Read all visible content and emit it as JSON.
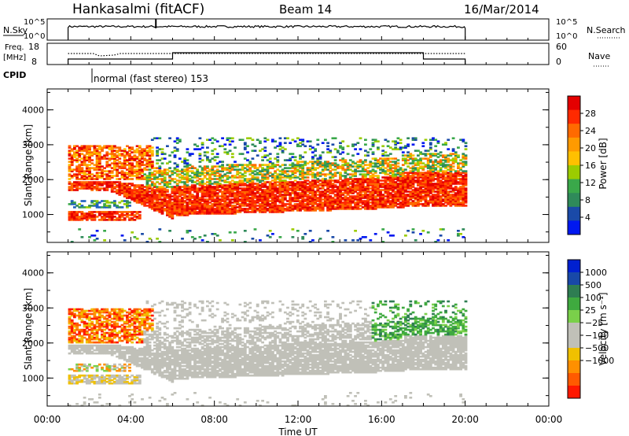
{
  "header": {
    "station": "Hankasalmi (fitACF)",
    "beam": "Beam 14",
    "date": "16/Mar/2014"
  },
  "status_panel": {
    "nsky_label": "N.Sky",
    "nsky_ticks": [
      "10^5",
      "10^0"
    ],
    "nsearch_label": "N.Search",
    "nsearch_ticks": [
      "10^5",
      "10^0"
    ],
    "freq_label": "Freq.",
    "freq_unit": "[MHz]",
    "freq_ticks": [
      "18",
      "8"
    ],
    "nave_label": "Nave",
    "nave_ticks": [
      "60",
      "0"
    ],
    "cpid_label": "CPID",
    "cpid_text": "normal (fast stereo) 153"
  },
  "power_panel": {
    "ylabel": "Slant Range [km]",
    "yticks": [
      "4000",
      "3000",
      "2000",
      "1000"
    ],
    "colorbar_label": "Power [dB]",
    "colorbar_ticks": [
      "28",
      "24",
      "20",
      "16",
      "12",
      "8",
      "4"
    ],
    "colors": [
      "#e40000",
      "#ff2a00",
      "#ff6a00",
      "#ff9a00",
      "#ffc000",
      "#9ccc00",
      "#3aa84a",
      "#2f8a5a",
      "#1a4aa8",
      "#0018f0"
    ]
  },
  "velocity_panel": {
    "ylabel": "Slant Range [km]",
    "yticks": [
      "4000",
      "3000",
      "2000",
      "1000"
    ],
    "colorbar_label": "Velocity [m s⁻¹]",
    "colorbar_ticks": [
      "1000",
      "500",
      "100",
      "25",
      "−25",
      "−100",
      "−500",
      "−1000"
    ],
    "colors": [
      "#0020d0",
      "#1848a8",
      "#2e7d52",
      "#3faa3f",
      "#7ad04a",
      "#c0c0b8",
      "#c0c0b8",
      "#f0c000",
      "#ff9000",
      "#ff5a00",
      "#ff1800"
    ]
  },
  "xaxis": {
    "label": "Time UT",
    "ticks": [
      "00:00",
      "04:00",
      "08:00",
      "12:00",
      "16:00",
      "20:00",
      "00:00"
    ]
  },
  "chart_data": [
    {
      "type": "heatmap",
      "title": "Power",
      "xlabel": "Time UT",
      "ylabel": "Slant Range [km]",
      "xlim": [
        0,
        24
      ],
      "ylim": [
        200,
        4600
      ],
      "colorbar": "Power [dB]",
      "colorbar_ticks": [
        4,
        8,
        12,
        16,
        20,
        24,
        28
      ],
      "data_coverage": [
        1,
        20
      ],
      "regions": [
        {
          "desc": "strong band",
          "t": [
            1,
            20
          ],
          "range_km": [
            1000,
            2000
          ],
          "power_db": 28
        },
        {
          "desc": "upper band",
          "t": [
            1,
            20
          ],
          "range_km": [
            2000,
            3000
          ],
          "power_db": 14
        }
      ]
    },
    {
      "type": "heatmap",
      "title": "Velocity",
      "xlabel": "Time UT",
      "ylabel": "Slant Range [km]",
      "xlim": [
        0,
        24
      ],
      "ylim": [
        200,
        4600
      ],
      "colorbar": "Velocity [m s-1]",
      "colorbar_ticks": [
        1000,
        500,
        100,
        25,
        -25,
        -100,
        -500,
        -1000
      ],
      "data_coverage": [
        1,
        20
      ]
    }
  ]
}
